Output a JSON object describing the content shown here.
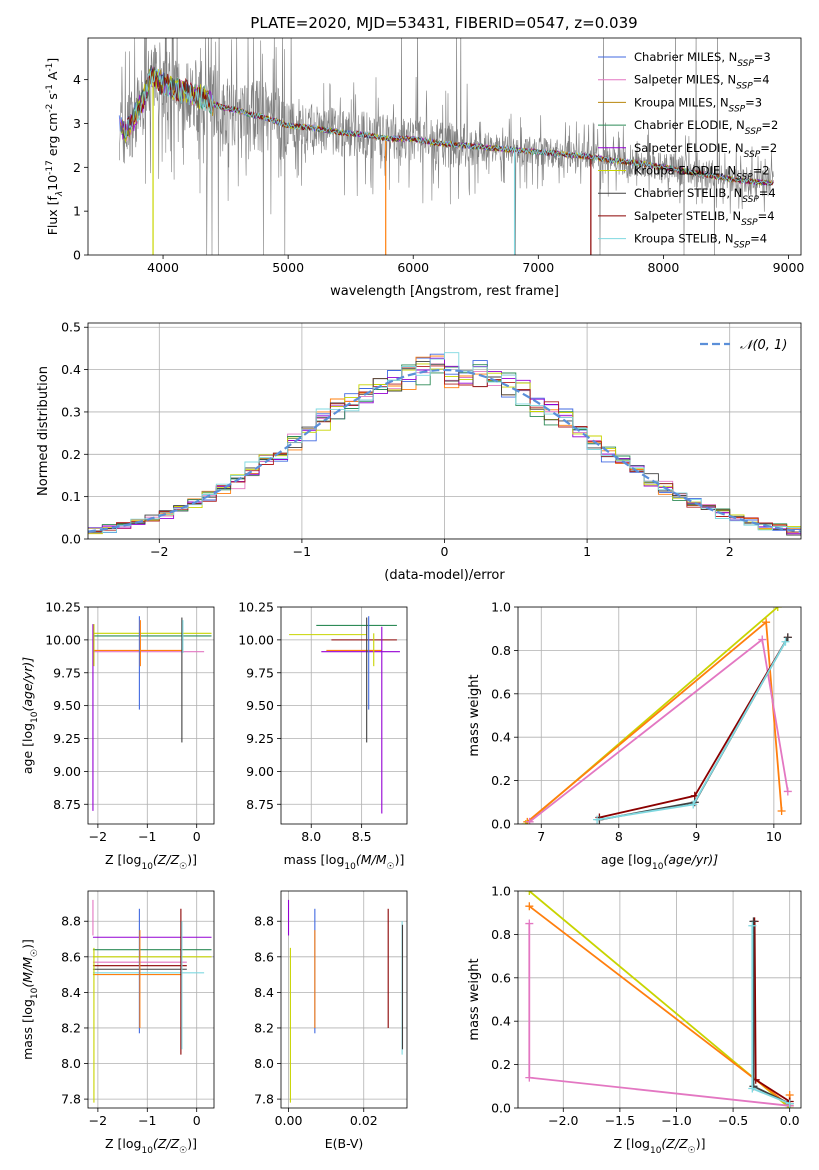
{
  "figure": {
    "title": "PLATE=2020, MJD=53431, FIBERID=0547, z=0.039"
  },
  "chart_data": [
    {
      "id": "spectrum",
      "type": "line",
      "xlabel": "wavelength [Angstrom, rest frame]",
      "ylabel": "Flux [f",
      "ylabel_sub": "λ",
      "ylabel_rest": "10",
      "ylabel_exp": "-17",
      "ylabel_rest2": " erg cm",
      "ylabel_exp2": "-2",
      "ylabel_rest3": " s",
      "ylabel_exp3": "-1",
      "ylabel_rest4": " A",
      "ylabel_exp4": "-1",
      "ylabel_end": "]",
      "xlim": [
        3400,
        9100
      ],
      "ylim": [
        0,
        4.95
      ],
      "xticks": [
        4000,
        5000,
        6000,
        7000,
        8000,
        9000
      ],
      "yticks": [
        0,
        1,
        2,
        3,
        4
      ],
      "grid": false,
      "legend_position": "top-right",
      "data": {
        "color": "#808080",
        "x_range": [
          3650,
          8880
        ]
      },
      "models_envelope": {
        "x": [
          3650,
          3700,
          3800,
          3850,
          3900,
          4000,
          4100,
          4200,
          4300,
          4400,
          4500,
          4600,
          4700,
          4800,
          4900,
          5000,
          5200,
          5400,
          5600,
          5800,
          6000,
          6200,
          6400,
          6600,
          6800,
          7000,
          7200,
          7400,
          7600,
          7800,
          8000,
          8200,
          8400,
          8600,
          8800
        ],
        "y": [
          3.0,
          2.8,
          3.3,
          3.6,
          4.1,
          3.9,
          3.8,
          3.7,
          3.6,
          3.45,
          3.35,
          3.3,
          3.2,
          3.15,
          3.05,
          2.95,
          2.9,
          2.8,
          2.75,
          2.65,
          2.65,
          2.55,
          2.5,
          2.45,
          2.4,
          2.35,
          2.3,
          2.25,
          2.15,
          2.1,
          2.0,
          1.9,
          1.8,
          1.7,
          1.65
        ]
      },
      "series": [
        {
          "name": "Chabrier MILES, N",
          "nssp": "=3",
          "color": "#4169e1"
        },
        {
          "name": "Salpeter MILES, N",
          "nssp": "=4",
          "color": "#e377c2"
        },
        {
          "name": "Kroupa MILES, N",
          "nssp": "=3",
          "color": "#b8860b"
        },
        {
          "name": "Chabrier ELODIE, N",
          "nssp": "=2",
          "color": "#2e8b57"
        },
        {
          "name": "Salpeter ELODIE, N",
          "nssp": "=2",
          "color": "#9400d3"
        },
        {
          "name": "Kroupa ELODIE, N",
          "nssp": "=2",
          "color": "#c8d400"
        },
        {
          "name": "Chabrier STELIB, N",
          "nssp": "=4",
          "color": "#404040"
        },
        {
          "name": "Salpeter STELIB, N",
          "nssp": "=4",
          "color": "#8b0000"
        },
        {
          "name": "Kroupa STELIB, N",
          "nssp": "=4",
          "color": "#7fd8e0"
        }
      ],
      "legend_sub": "SSP"
    },
    {
      "id": "residuals",
      "type": "line",
      "xlabel": "(data-model)/error",
      "ylabel": "Normed distribution",
      "xlim": [
        -2.5,
        2.5
      ],
      "ylim": [
        0,
        0.51
      ],
      "xticks": [
        -2,
        -1,
        0,
        1,
        2
      ],
      "yticks": [
        0.0,
        0.1,
        0.2,
        0.3,
        0.4,
        0.5
      ],
      "grid": true,
      "legend_position": "top-right",
      "gaussian_label": "𝒩(0, 1)",
      "gaussian_color": "#5b8fd9",
      "hist_bin_width": 0.1,
      "hist_colors": [
        "#4169e1",
        "#e377c2",
        "#ff7f0e",
        "#2e8b57",
        "#9400d3",
        "#c8d400",
        "#404040",
        "#b22222",
        "#7fd8e0"
      ]
    },
    {
      "id": "age_vs_Z",
      "type": "scatter",
      "xlabel": "Z [log",
      "xlabel_sub": "10",
      "xlabel_rest": "(Z/Z",
      "xlabel_sub2": "☉",
      "xlabel_end": ")]",
      "ylabel": "age  [log",
      "ylabel_sub": "10",
      "ylabel_rest": "(age/yr)]",
      "xlim": [
        -2.2,
        0.35
      ],
      "ylim": [
        8.6,
        10.25
      ],
      "xticks": [
        -2,
        -1,
        0
      ],
      "yticks": [
        8.75,
        9.0,
        9.25,
        9.5,
        9.75,
        10.0,
        10.25
      ],
      "grid": true,
      "hbars": [
        {
          "y": 10.05,
          "x": [
            -2.1,
            0.3
          ],
          "color": "#c8d400"
        },
        {
          "y": 10.03,
          "x": [
            -2.1,
            0.3
          ],
          "color": "#2e8b57"
        },
        {
          "y": 9.91,
          "x": [
            -2.1,
            0.15
          ],
          "color": "#e377c2"
        },
        {
          "y": 9.92,
          "x": [
            -2.1,
            -0.3
          ],
          "color": "#ff7f0e"
        }
      ],
      "vbars": [
        {
          "x": -2.1,
          "y": [
            8.7,
            10.12
          ],
          "color": "#9400d3"
        },
        {
          "x": -2.08,
          "y": [
            9.8,
            10.12
          ],
          "color": "#c8d400"
        },
        {
          "x": -1.16,
          "y": [
            9.47,
            10.18
          ],
          "color": "#4169e1"
        },
        {
          "x": -1.14,
          "y": [
            9.8,
            10.15
          ],
          "color": "#ff7f0e"
        },
        {
          "x": -0.3,
          "y": [
            9.22,
            10.17
          ],
          "color": "#404040"
        },
        {
          "x": -0.28,
          "y": [
            9.9,
            10.15
          ],
          "color": "#7fd8e0"
        }
      ]
    },
    {
      "id": "age_vs_mass",
      "type": "scatter",
      "xlabel": "mass [log",
      "xlabel_sub": "10",
      "xlabel_rest": "(M/M",
      "xlabel_sub2": "☉",
      "xlabel_end": ")]",
      "xlim": [
        7.7,
        8.95
      ],
      "ylim": [
        8.6,
        10.25
      ],
      "xticks": [
        8.0,
        8.5
      ],
      "yticks": [
        8.75,
        9.0,
        9.25,
        9.5,
        9.75,
        10.0,
        10.25
      ],
      "grid": true,
      "hbars": [
        {
          "y": 10.11,
          "x": [
            8.05,
            8.85
          ],
          "color": "#2e8b57"
        },
        {
          "y": 10.04,
          "x": [
            7.78,
            8.55
          ],
          "color": "#c8d400"
        },
        {
          "y": 10.0,
          "x": [
            8.2,
            8.85
          ],
          "color": "#8b0000"
        },
        {
          "y": 9.91,
          "x": [
            8.1,
            8.88
          ],
          "color": "#9400d3"
        },
        {
          "y": 9.92,
          "x": [
            8.15,
            8.7
          ],
          "color": "#ff7f0e"
        }
      ],
      "vbars": [
        {
          "x": 8.55,
          "y": [
            9.22,
            10.17
          ],
          "color": "#404040"
        },
        {
          "x": 8.57,
          "y": [
            9.47,
            10.18
          ],
          "color": "#4169e1"
        },
        {
          "x": 8.7,
          "y": [
            8.68,
            10.1
          ],
          "color": "#9400d3"
        },
        {
          "x": 8.62,
          "y": [
            9.8,
            10.05
          ],
          "color": "#c8d400"
        }
      ]
    },
    {
      "id": "weight_vs_age",
      "type": "line",
      "xlabel": "age  [log",
      "xlabel_sub": "10",
      "xlabel_rest": "(age/yr)]",
      "ylabel": "mass weight",
      "xlim": [
        6.7,
        10.35
      ],
      "ylim": [
        0.0,
        1.0
      ],
      "xticks": [
        7,
        8,
        9,
        10
      ],
      "yticks": [
        0.0,
        0.2,
        0.4,
        0.6,
        0.8,
        1.0
      ],
      "grid": true,
      "series": [
        {
          "color": "#c8d400",
          "x": [
            6.8,
            10.05
          ],
          "y": [
            0.0,
            1.0
          ]
        },
        {
          "color": "#ff7f0e",
          "x": [
            6.82,
            9.9,
            10.1
          ],
          "y": [
            0.01,
            0.93,
            0.06
          ]
        },
        {
          "color": "#e377c2",
          "x": [
            6.85,
            9.85,
            10.18
          ],
          "y": [
            0.01,
            0.85,
            0.15
          ]
        },
        {
          "color": "#8b0000",
          "x": [
            7.75,
            8.98,
            10.18
          ],
          "y": [
            0.03,
            0.13,
            0.86
          ]
        },
        {
          "color": "#404040",
          "x": [
            7.75,
            8.98,
            10.18
          ],
          "y": [
            0.02,
            0.1,
            0.86
          ]
        },
        {
          "color": "#7fd8e0",
          "x": [
            7.72,
            8.96,
            10.15
          ],
          "y": [
            0.02,
            0.09,
            0.84
          ]
        }
      ]
    },
    {
      "id": "mass_vs_Z",
      "type": "scatter",
      "xlabel": "Z [log",
      "xlabel_sub": "10",
      "xlabel_rest": "(Z/Z",
      "xlabel_sub2": "☉",
      "xlabel_end": ")]",
      "ylabel": "mass [log",
      "ylabel_sub": "10",
      "ylabel_rest": "(M/M",
      "ylabel_sub2": "☉",
      "ylabel_end": ")]",
      "xlim": [
        -2.2,
        0.35
      ],
      "ylim": [
        7.75,
        8.97
      ],
      "xticks": [
        -2,
        -1,
        0
      ],
      "yticks": [
        7.8,
        8.0,
        8.2,
        8.4,
        8.6,
        8.8
      ],
      "grid": true,
      "hbars": [
        {
          "y": 8.71,
          "x": [
            -2.1,
            0.3
          ],
          "color": "#9400d3"
        },
        {
          "y": 8.64,
          "x": [
            -2.1,
            0.3
          ],
          "color": "#2e8b57"
        },
        {
          "y": 8.6,
          "x": [
            -2.1,
            0.3
          ],
          "color": "#c8d400"
        },
        {
          "y": 8.57,
          "x": [
            -2.1,
            -0.2
          ],
          "color": "#e377c2"
        },
        {
          "y": 8.55,
          "x": [
            -2.1,
            -0.2
          ],
          "color": "#8b0000"
        },
        {
          "y": 8.53,
          "x": [
            -2.1,
            -0.2
          ],
          "color": "#404040"
        },
        {
          "y": 8.51,
          "x": [
            -2.1,
            0.15
          ],
          "color": "#7fd8e0"
        },
        {
          "y": 8.5,
          "x": [
            -2.1,
            -0.3
          ],
          "color": "#ff7f0e"
        }
      ],
      "vbars": [
        {
          "x": -2.1,
          "y": [
            8.72,
            8.92
          ],
          "color": "#e377c2"
        },
        {
          "x": -2.08,
          "y": [
            7.78,
            8.65
          ],
          "color": "#c8d400"
        },
        {
          "x": -1.16,
          "y": [
            8.17,
            8.87
          ],
          "color": "#4169e1"
        },
        {
          "x": -1.15,
          "y": [
            8.2,
            8.75
          ],
          "color": "#ff7f0e"
        },
        {
          "x": -0.32,
          "y": [
            8.05,
            8.87
          ],
          "color": "#8b0000"
        },
        {
          "x": -0.3,
          "y": [
            8.08,
            8.8
          ],
          "color": "#7fd8e0"
        }
      ]
    },
    {
      "id": "mass_vs_ebv",
      "type": "scatter",
      "xlabel": "E(B-V)",
      "xlim": [
        -0.002,
        0.0315
      ],
      "ylim": [
        7.75,
        8.97
      ],
      "xticks": [
        0.0,
        0.02
      ],
      "yticks": [
        7.8,
        8.0,
        8.2,
        8.4,
        8.6,
        8.8
      ],
      "grid": true,
      "vbars": [
        {
          "x": 0.0,
          "y": [
            8.72,
            8.92
          ],
          "color": "#9400d3"
        },
        {
          "x": 0.0005,
          "y": [
            7.78,
            8.65
          ],
          "color": "#c8d400"
        },
        {
          "x": 0.007,
          "y": [
            8.17,
            8.87
          ],
          "color": "#4169e1"
        },
        {
          "x": 0.007,
          "y": [
            8.2,
            8.75
          ],
          "color": "#ff7f0e"
        },
        {
          "x": 0.0265,
          "y": [
            8.2,
            8.87
          ],
          "color": "#8b0000"
        },
        {
          "x": 0.0302,
          "y": [
            8.05,
            8.8
          ],
          "color": "#7fd8e0"
        },
        {
          "x": 0.0303,
          "y": [
            8.08,
            8.78
          ],
          "color": "#404040"
        }
      ]
    },
    {
      "id": "weight_vs_Z",
      "type": "line",
      "xlabel": "Z [log",
      "xlabel_sub": "10",
      "xlabel_rest": "(Z/Z",
      "xlabel_sub2": "☉",
      "xlabel_end": ")]",
      "ylabel": "mass weight",
      "xlim": [
        -2.4,
        0.1
      ],
      "ylim": [
        0.0,
        1.0
      ],
      "xticks": [
        -2.0,
        -1.5,
        -1.0,
        -0.5,
        0.0
      ],
      "yticks": [
        0.0,
        0.2,
        0.4,
        0.6,
        0.8,
        1.0
      ],
      "grid": true,
      "series": [
        {
          "color": "#c8d400",
          "x": [
            -2.3,
            0.0
          ],
          "y": [
            1.0,
            0.0
          ]
        },
        {
          "color": "#ff7f0e",
          "x": [
            -2.3,
            0.0,
            0.0
          ],
          "y": [
            0.93,
            0.01,
            0.06
          ]
        },
        {
          "color": "#e377c2",
          "x": [
            -2.3,
            -2.3,
            0.0
          ],
          "y": [
            0.85,
            0.14,
            0.01
          ]
        },
        {
          "color": "#8b0000",
          "x": [
            -0.31,
            -0.3,
            0.0
          ],
          "y": [
            0.86,
            0.13,
            0.03
          ]
        },
        {
          "color": "#404040",
          "x": [
            -0.32,
            -0.32,
            0.0
          ],
          "y": [
            0.86,
            0.1,
            0.02
          ]
        },
        {
          "color": "#7fd8e0",
          "x": [
            -0.33,
            -0.33,
            0.0
          ],
          "y": [
            0.84,
            0.09,
            0.02
          ]
        }
      ]
    }
  ]
}
